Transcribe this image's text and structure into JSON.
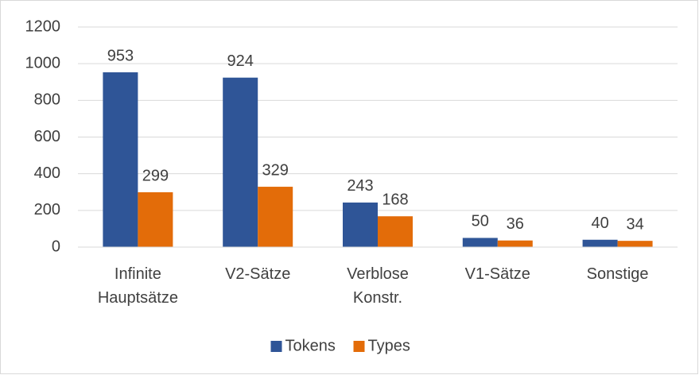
{
  "chart_data": {
    "type": "bar",
    "categories": [
      "Infinite Hauptsätze",
      "V2-Sätze",
      "Verblose Konstr.",
      "V1-Sätze",
      "Sonstige"
    ],
    "series": [
      {
        "name": "Tokens",
        "color": "#2f5597",
        "values": [
          953,
          924,
          243,
          50,
          40
        ]
      },
      {
        "name": "Types",
        "color": "#e36c09",
        "values": [
          299,
          329,
          168,
          36,
          34
        ]
      }
    ],
    "ylim": [
      0,
      1200
    ],
    "yticks": [
      0,
      200,
      400,
      600,
      800,
      1000,
      1200
    ],
    "grid": true,
    "legend": "bottom"
  }
}
